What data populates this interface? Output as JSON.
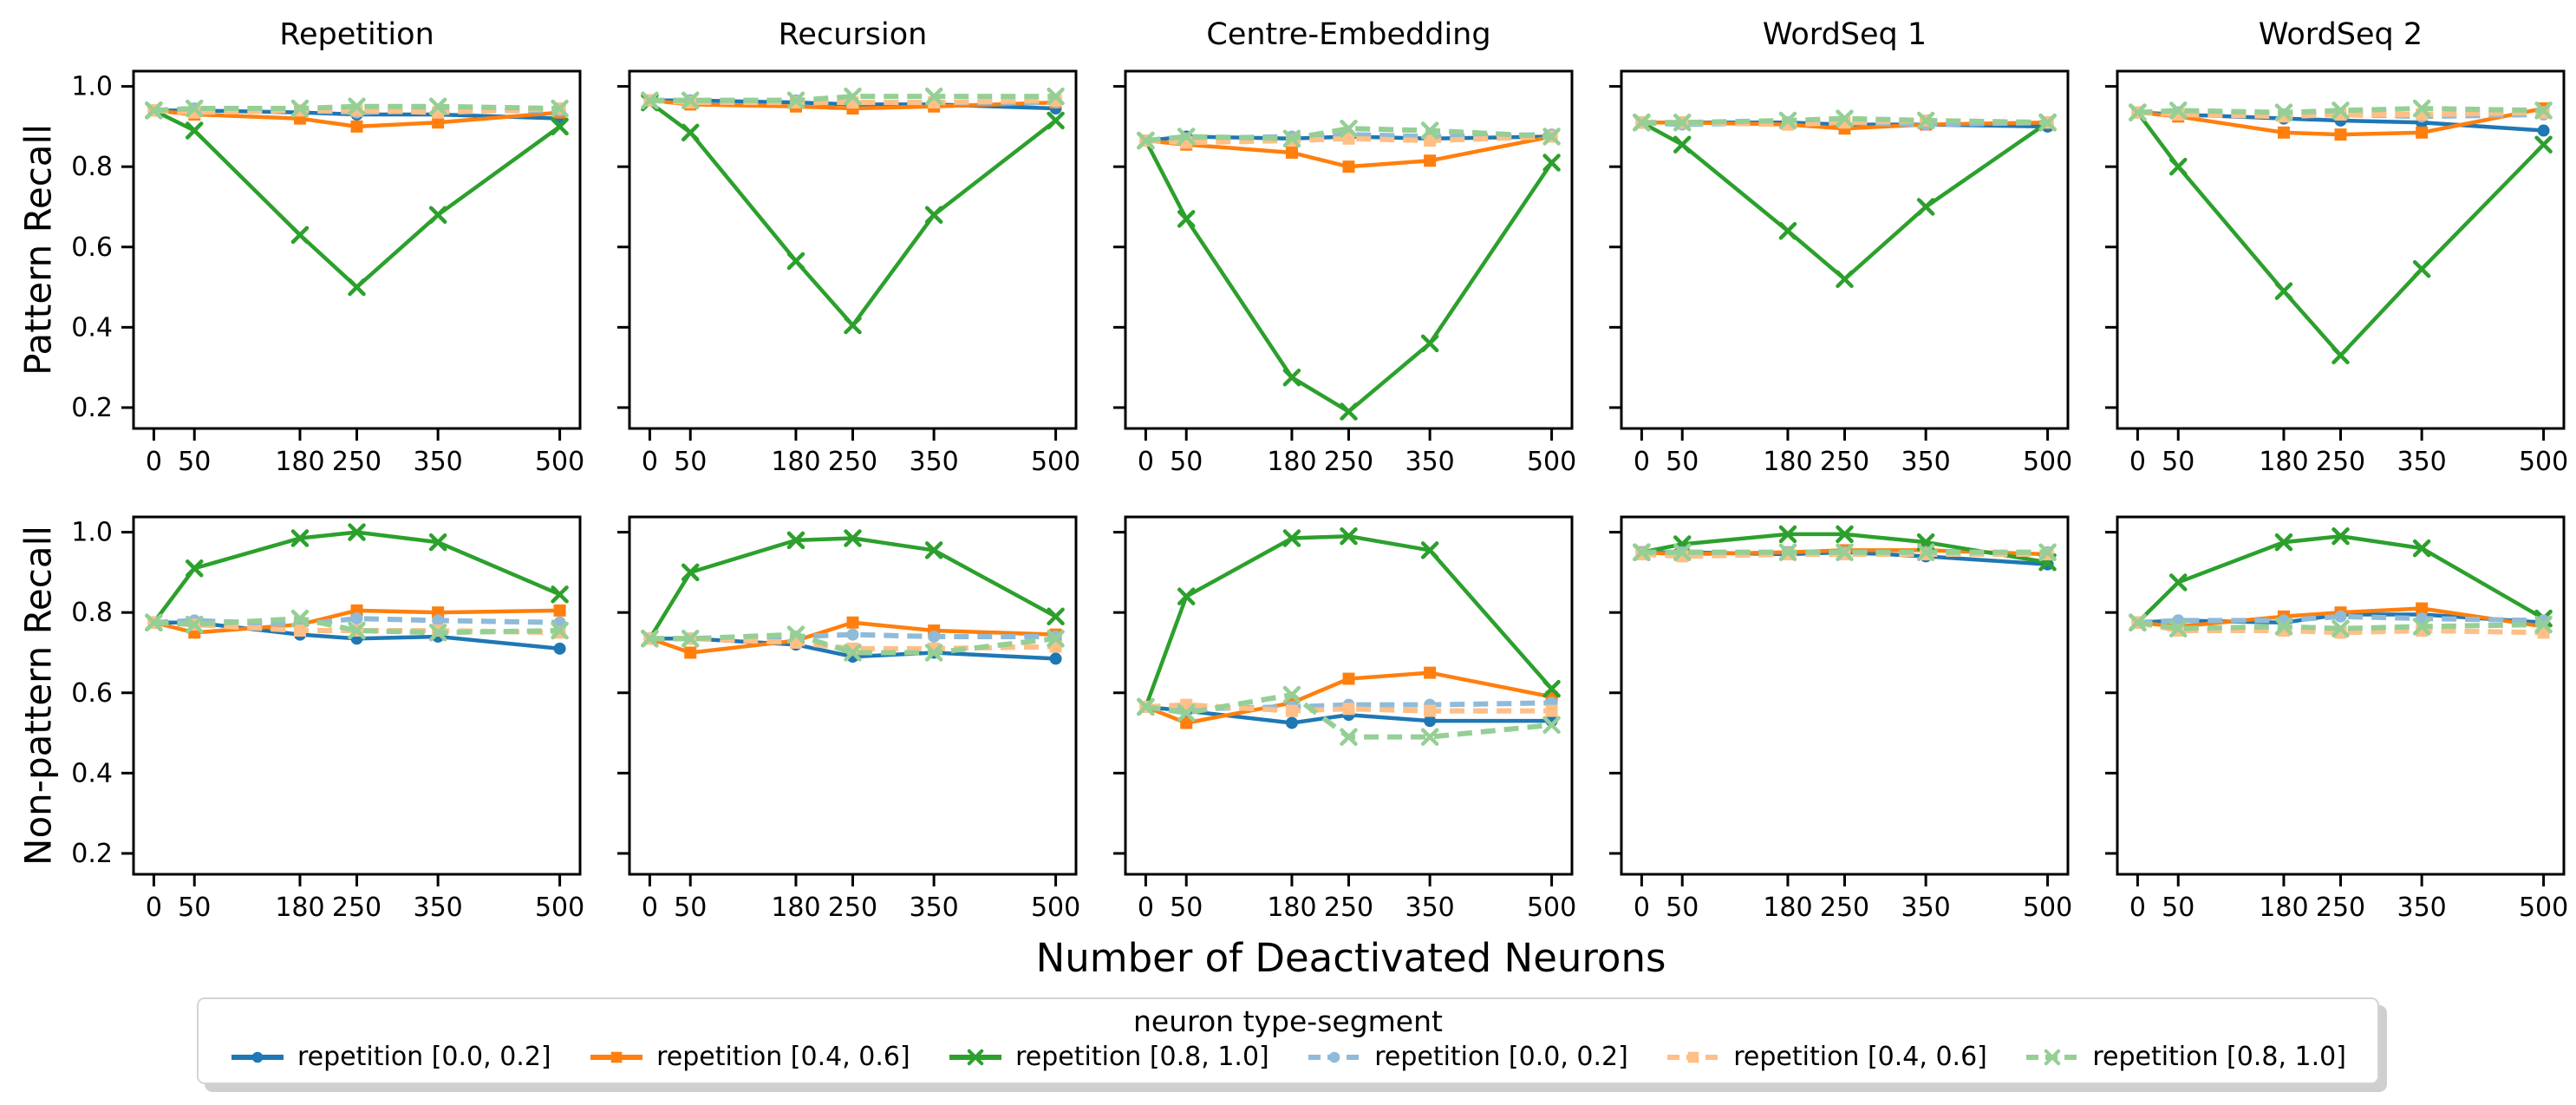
{
  "figure": {
    "xlabel": "Number of Deactivated Neurons",
    "ylabel_top": "Pattern Recall",
    "ylabel_bottom": "Non-pattern Recall"
  },
  "legend": {
    "title": "neuron type-segment"
  },
  "chart_data": {
    "type": "line",
    "x": [
      0,
      50,
      180,
      250,
      350,
      500
    ],
    "xticks": [
      0,
      50,
      180,
      250,
      350,
      500
    ],
    "yticks": [
      1.0,
      0.8,
      0.6,
      0.4,
      0.2
    ],
    "xlim": [
      -25,
      525
    ],
    "ylim": [
      0.148,
      1.038
    ],
    "grid": false,
    "legend_position": "bottom",
    "rows": [
      "Pattern Recall",
      "Non-pattern Recall"
    ],
    "columns": [
      "Repetition",
      "Recursion",
      "Centre-Embedding",
      "WordSeq 1",
      "WordSeq 2"
    ],
    "series_defs": [
      {
        "name": "repetition [0.0, 0.2]",
        "color": "#1f77b4",
        "dash": "solid",
        "marker": "circle"
      },
      {
        "name": "repetition [0.4, 0.6]",
        "color": "#ff7f0e",
        "dash": "solid",
        "marker": "square"
      },
      {
        "name": "repetition [0.8, 1.0]",
        "color": "#2ca02c",
        "dash": "solid",
        "marker": "x"
      },
      {
        "name": "repetition [0.0, 0.2]",
        "color": "#8fbbd9",
        "dash": "dashed",
        "marker": "circle"
      },
      {
        "name": "repetition [0.4, 0.6]",
        "color": "#ffbf86",
        "dash": "dashed",
        "marker": "square"
      },
      {
        "name": "repetition [0.8, 1.0]",
        "color": "#95cf95",
        "dash": "dashed",
        "marker": "x"
      }
    ],
    "plots": [
      {
        "row": 0,
        "col": 0,
        "series": [
          [
            0.94,
            0.94,
            0.935,
            0.93,
            0.93,
            0.92
          ],
          [
            0.94,
            0.93,
            0.92,
            0.9,
            0.91,
            0.935
          ],
          [
            0.94,
            0.89,
            0.63,
            0.5,
            0.68,
            0.9
          ],
          [
            0.94,
            0.945,
            0.94,
            0.935,
            0.94,
            0.94
          ],
          [
            0.94,
            0.935,
            0.94,
            0.94,
            0.935,
            0.945
          ],
          [
            0.94,
            0.945,
            0.945,
            0.95,
            0.95,
            0.945
          ]
        ]
      },
      {
        "row": 0,
        "col": 1,
        "series": [
          [
            0.965,
            0.965,
            0.96,
            0.955,
            0.955,
            0.945
          ],
          [
            0.965,
            0.955,
            0.95,
            0.945,
            0.95,
            0.96
          ],
          [
            0.96,
            0.885,
            0.565,
            0.405,
            0.68,
            0.915
          ],
          [
            0.965,
            0.965,
            0.965,
            0.96,
            0.96,
            0.96
          ],
          [
            0.965,
            0.96,
            0.96,
            0.96,
            0.96,
            0.965
          ],
          [
            0.965,
            0.965,
            0.965,
            0.975,
            0.975,
            0.975
          ]
        ]
      },
      {
        "row": 0,
        "col": 2,
        "series": [
          [
            0.865,
            0.875,
            0.87,
            0.875,
            0.87,
            0.875
          ],
          [
            0.865,
            0.855,
            0.835,
            0.8,
            0.815,
            0.875
          ],
          [
            0.865,
            0.67,
            0.275,
            0.19,
            0.36,
            0.81
          ],
          [
            0.865,
            0.87,
            0.875,
            0.88,
            0.875,
            0.88
          ],
          [
            0.865,
            0.86,
            0.865,
            0.87,
            0.865,
            0.875
          ],
          [
            0.865,
            0.875,
            0.87,
            0.895,
            0.89,
            0.875
          ]
        ]
      },
      {
        "row": 0,
        "col": 3,
        "series": [
          [
            0.91,
            0.91,
            0.91,
            0.905,
            0.905,
            0.9
          ],
          [
            0.91,
            0.91,
            0.905,
            0.895,
            0.905,
            0.91
          ],
          [
            0.91,
            0.855,
            0.64,
            0.52,
            0.7,
            0.91
          ],
          [
            0.91,
            0.905,
            0.91,
            0.91,
            0.905,
            0.91
          ],
          [
            0.91,
            0.91,
            0.905,
            0.91,
            0.915,
            0.91
          ],
          [
            0.91,
            0.91,
            0.915,
            0.92,
            0.915,
            0.91
          ]
        ]
      },
      {
        "row": 0,
        "col": 4,
        "series": [
          [
            0.935,
            0.93,
            0.92,
            0.915,
            0.91,
            0.89
          ],
          [
            0.935,
            0.925,
            0.885,
            0.88,
            0.885,
            0.945
          ],
          [
            0.935,
            0.8,
            0.49,
            0.33,
            0.545,
            0.855
          ],
          [
            0.935,
            0.935,
            0.93,
            0.93,
            0.925,
            0.93
          ],
          [
            0.935,
            0.93,
            0.925,
            0.93,
            0.93,
            0.935
          ],
          [
            0.935,
            0.94,
            0.935,
            0.94,
            0.945,
            0.94
          ]
        ]
      },
      {
        "row": 1,
        "col": 0,
        "series": [
          [
            0.775,
            0.775,
            0.745,
            0.735,
            0.74,
            0.71
          ],
          [
            0.775,
            0.75,
            0.77,
            0.805,
            0.8,
            0.805
          ],
          [
            0.775,
            0.91,
            0.985,
            1.0,
            0.975,
            0.845
          ],
          [
            0.775,
            0.78,
            0.77,
            0.785,
            0.78,
            0.775
          ],
          [
            0.775,
            0.77,
            0.755,
            0.755,
            0.755,
            0.75
          ],
          [
            0.775,
            0.77,
            0.785,
            0.755,
            0.75,
            0.755
          ]
        ]
      },
      {
        "row": 1,
        "col": 1,
        "series": [
          [
            0.735,
            0.735,
            0.72,
            0.69,
            0.7,
            0.685
          ],
          [
            0.735,
            0.7,
            0.73,
            0.775,
            0.755,
            0.745
          ],
          [
            0.735,
            0.9,
            0.98,
            0.985,
            0.955,
            0.79
          ],
          [
            0.735,
            0.735,
            0.74,
            0.745,
            0.74,
            0.74
          ],
          [
            0.735,
            0.735,
            0.725,
            0.71,
            0.71,
            0.715
          ],
          [
            0.735,
            0.735,
            0.745,
            0.7,
            0.7,
            0.735
          ]
        ]
      },
      {
        "row": 1,
        "col": 2,
        "series": [
          [
            0.565,
            0.555,
            0.525,
            0.545,
            0.53,
            0.53
          ],
          [
            0.565,
            0.525,
            0.575,
            0.635,
            0.65,
            0.59
          ],
          [
            0.565,
            0.84,
            0.985,
            0.99,
            0.955,
            0.61
          ],
          [
            0.565,
            0.56,
            0.565,
            0.57,
            0.57,
            0.575
          ],
          [
            0.565,
            0.57,
            0.555,
            0.56,
            0.555,
            0.555
          ],
          [
            0.565,
            0.55,
            0.595,
            0.49,
            0.49,
            0.52
          ]
        ]
      },
      {
        "row": 1,
        "col": 3,
        "series": [
          [
            0.95,
            0.95,
            0.945,
            0.95,
            0.94,
            0.92
          ],
          [
            0.95,
            0.945,
            0.95,
            0.955,
            0.955,
            0.945
          ],
          [
            0.95,
            0.97,
            0.995,
            0.995,
            0.975,
            0.925
          ],
          [
            0.95,
            0.95,
            0.95,
            0.95,
            0.95,
            0.95
          ],
          [
            0.945,
            0.94,
            0.945,
            0.945,
            0.945,
            0.945
          ],
          [
            0.95,
            0.95,
            0.95,
            0.95,
            0.95,
            0.95
          ]
        ]
      },
      {
        "row": 1,
        "col": 4,
        "series": [
          [
            0.775,
            0.78,
            0.775,
            0.795,
            0.795,
            0.775
          ],
          [
            0.775,
            0.765,
            0.79,
            0.8,
            0.81,
            0.765
          ],
          [
            0.775,
            0.875,
            0.975,
            0.99,
            0.96,
            0.785
          ],
          [
            0.775,
            0.78,
            0.78,
            0.79,
            0.785,
            0.78
          ],
          [
            0.775,
            0.755,
            0.755,
            0.75,
            0.755,
            0.75
          ],
          [
            0.775,
            0.76,
            0.765,
            0.76,
            0.765,
            0.77
          ]
        ]
      }
    ]
  }
}
